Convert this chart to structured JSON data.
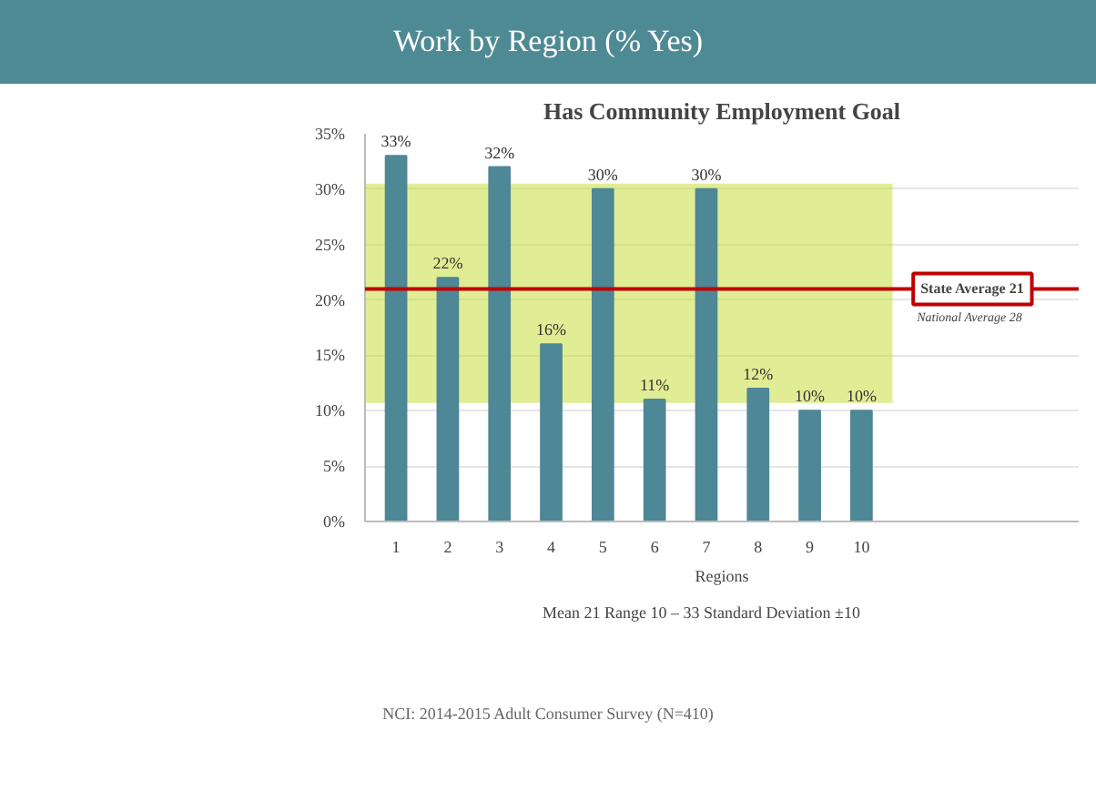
{
  "chart_data": {
    "type": "bar",
    "title": "Work by Region (% Yes)",
    "subtitle": "Has Community Employment Goal",
    "xlabel": "Regions",
    "categories": [
      "1",
      "2",
      "3",
      "4",
      "5",
      "6",
      "7",
      "8",
      "9",
      "10"
    ],
    "values": [
      33,
      22,
      32,
      16,
      30,
      11,
      30,
      12,
      10,
      10
    ],
    "value_labels": [
      "33%",
      "22%",
      "32%",
      "16%",
      "30%",
      "11%",
      "30%",
      "12%",
      "10%",
      "10%"
    ],
    "color": "#4e8795",
    "ylim": [
      0,
      35
    ],
    "yticks": [
      {
        "value": 0,
        "label": "0%"
      },
      {
        "value": 5,
        "label": "5%"
      },
      {
        "value": 10,
        "label": "10%"
      },
      {
        "value": 15,
        "label": "15%"
      },
      {
        "value": 20,
        "label": "20%"
      },
      {
        "value": 25,
        "label": "25%"
      },
      {
        "value": 30,
        "label": "30%"
      },
      {
        "value": 35,
        "label": "35%"
      }
    ],
    "grid": "y",
    "ref_lines": [
      {
        "axis": "y",
        "value": 21,
        "label": "State Average 21",
        "color": "#c00000"
      }
    ],
    "bands": [
      {
        "axis": "y",
        "from": 10.7,
        "to": 30.5,
        "color": "#c9df3c"
      }
    ],
    "annotations": [
      "Mean 21      Range 10 – 33      Standard Deviation ±10",
      "National Average 28",
      "NCI: 2014-2015 Adult Consumer Survey (N=410)"
    ]
  }
}
